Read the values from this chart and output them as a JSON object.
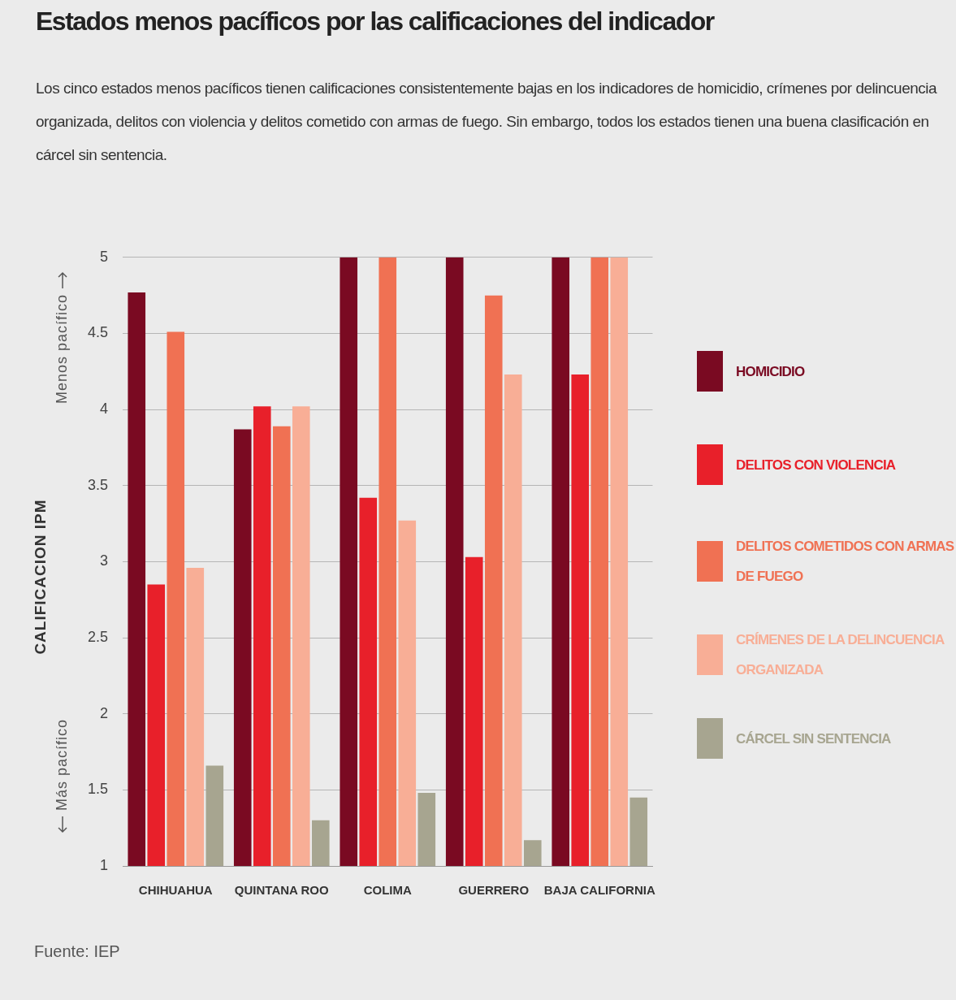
{
  "chart_data": {
    "type": "bar",
    "title": "Estados menos pacíficos por las calificaciones del indicador",
    "subtitle": "Los cinco estados menos pacíficos tienen calificaciones consistentemente bajas en los indicadores de homicidio, crímenes por delincuencia organizada, delitos con violencia y delitos cometido con armas de fuego. Sin embargo, todos los estados tienen una buena clasificación en cárcel sin sentencia.",
    "ylabel": "CALIFICACION IPM",
    "annotations": [
      "Menos pacífico",
      "Más pacífico",
      "Fuente: IEP"
    ],
    "categories": [
      "CHIHUAHUA",
      "QUINTANA ROO",
      "COLIMA",
      "GUERRERO",
      "BAJA CALIFORNIA"
    ],
    "series": [
      {
        "name": "HOMICIDIO",
        "color": "#7a0a22",
        "values": [
          4.77,
          3.87,
          5,
          5,
          5
        ]
      },
      {
        "name": "DELITOS CON VIOLENCIA",
        "color": "#e8202a",
        "values": [
          2.85,
          4.02,
          3.42,
          3.03,
          4.23
        ]
      },
      {
        "name": "DELITOS COMETIDOS CON ARMAS DE FUEGO",
        "color": "#f07153",
        "values": [
          4.51,
          3.89,
          5,
          4.75,
          5
        ]
      },
      {
        "name": "CRÍMENES DE LA DELINCUENCIA ORGANIZADA",
        "color": "#f8ae96",
        "values": [
          2.96,
          4.02,
          3.27,
          4.23,
          5
        ]
      },
      {
        "name": "CÁRCEL SIN SENTENCIA",
        "color": "#a7a590",
        "values": [
          1.66,
          1.3,
          1.48,
          1.17,
          1.45
        ]
      }
    ],
    "ylim": [
      1,
      5
    ],
    "yticks": [
      1,
      1.5,
      2,
      2.5,
      3,
      3.5,
      4,
      4.5,
      5
    ],
    "grid": "y",
    "legend": "right"
  }
}
